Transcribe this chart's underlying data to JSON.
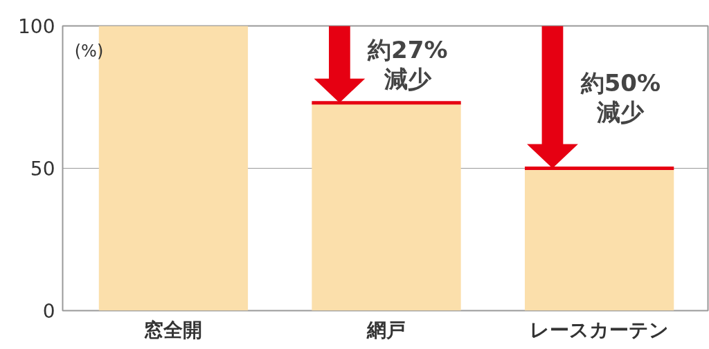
{
  "chart_data": {
    "type": "bar",
    "ylabel": "(%)",
    "categories": [
      "窓全開",
      "網戸",
      "レースカーテン"
    ],
    "values": [
      100,
      73,
      50
    ],
    "color": "#fbdfab",
    "ylim": [
      0,
      100
    ],
    "yticks": [
      0,
      50,
      100
    ],
    "grid": "y",
    "annotations": [
      {
        "text": "約27%\n減少",
        "x": "網戸",
        "y": 73
      },
      {
        "text": "約50%\n減少",
        "x": "レースカーテン",
        "y": 50
      }
    ]
  }
}
